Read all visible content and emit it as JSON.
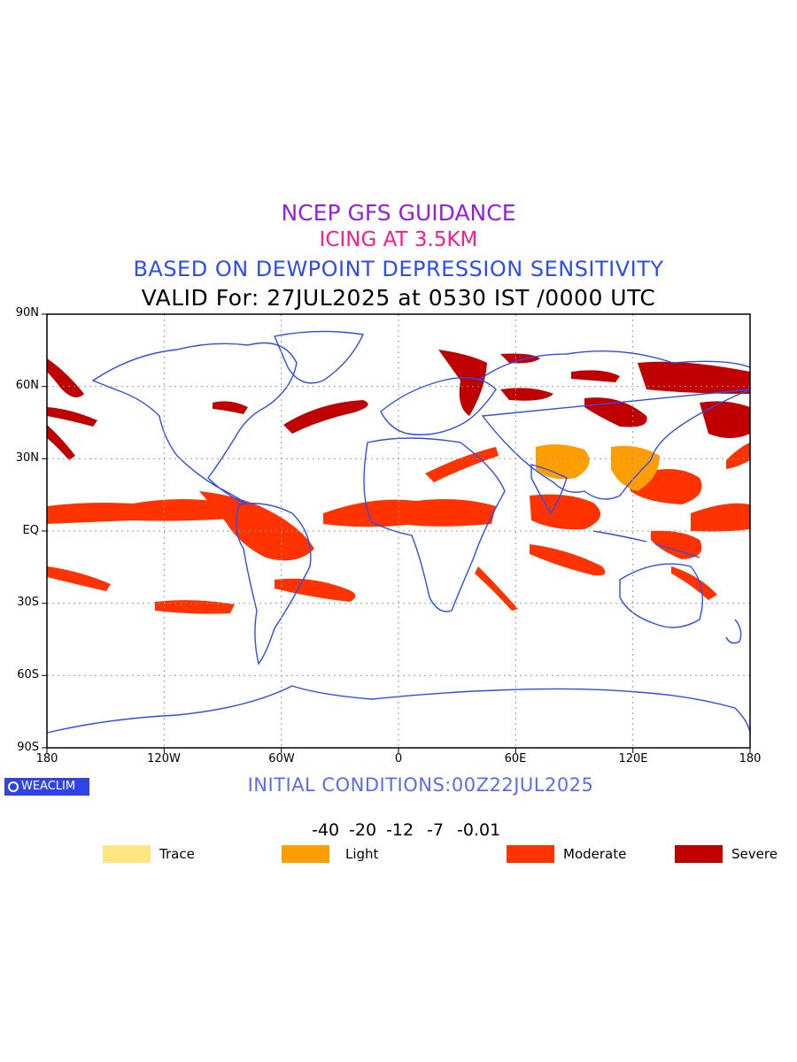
{
  "titles": {
    "line1": "NCEP GFS GUIDANCE",
    "line2": "ICING AT 3.5KM",
    "line3": "BASED ON DEWPOINT DEPRESSION SENSITIVITY",
    "line4": "VALID For: 27JUL2025 at 0530 IST /0000 UTC"
  },
  "axes": {
    "y_ticks": [
      "90N",
      "60N",
      "30N",
      "EQ",
      "30S",
      "60S",
      "90S"
    ],
    "x_ticks": [
      "180",
      "120W",
      "60W",
      "0",
      "60E",
      "120E",
      "180"
    ]
  },
  "logo": "WEACLIM",
  "initial_conditions": "INITIAL CONDITIONS:00Z22JUL2025",
  "colorbar": {
    "colors": [
      "#ffe680",
      "#ff9e00",
      "#ff3300",
      "#c00000"
    ],
    "tick_labels": [
      "-40",
      "-20",
      "-12",
      "-7",
      "-0.01"
    ]
  },
  "legend": [
    {
      "label": "Trace",
      "color": "#ffe680"
    },
    {
      "label": "Light",
      "color": "#ff9e00"
    },
    {
      "label": "Moderate",
      "color": "#ff3300"
    },
    {
      "label": "Severe",
      "color": "#c00000"
    }
  ],
  "colors": {
    "coastline": "#2e4df0",
    "grid": "#9a9a9a"
  }
}
